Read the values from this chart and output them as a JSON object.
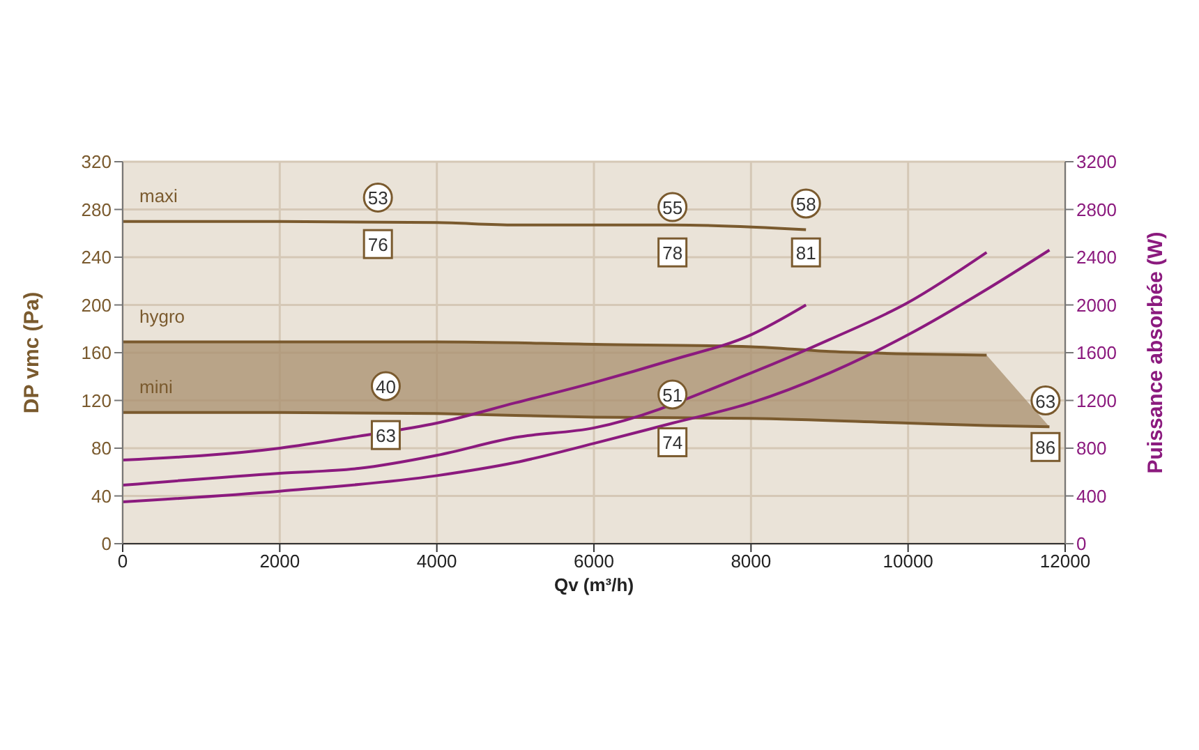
{
  "chart_data": {
    "type": "line",
    "xlabel": "Qv (m³/h)",
    "ylabel": "DP vmc (Pa)",
    "y2label": "Puissance absorbée (W)",
    "xlim": [
      0,
      12000
    ],
    "xticks": [
      0,
      2000,
      4000,
      6000,
      8000,
      10000,
      12000
    ],
    "ylim": [
      0,
      320
    ],
    "yticks": [
      0,
      40,
      80,
      120,
      160,
      200,
      240,
      280,
      320
    ],
    "y2lim": [
      0,
      3200
    ],
    "y2ticks": [
      0,
      400,
      800,
      1200,
      1600,
      2000,
      2400,
      2800,
      3200
    ],
    "grid": true,
    "legend": false,
    "marker": "none",
    "line_style": "solid",
    "series": [
      {
        "name": "maxi",
        "color": "#7a5a2e",
        "x": [
          0,
          2000,
          4000,
          5000,
          7000,
          8700
        ],
        "values": [
          270,
          270,
          269,
          267,
          267,
          263
        ]
      },
      {
        "name": "hygro",
        "color": "#7a5a2e",
        "x": [
          0,
          2000,
          4000,
          6000,
          8000,
          9000,
          10000,
          11000,
          11800
        ],
        "values": [
          169,
          169,
          169,
          167,
          165,
          161,
          159,
          158,
          null
        ],
        "lower": [
          110,
          110,
          109,
          106,
          105,
          103,
          101,
          99,
          98
        ],
        "upper": [
          169,
          169,
          169,
          167,
          165,
          161,
          159,
          158,
          98
        ]
      },
      {
        "name": "mini",
        "color": "#7a5a2e",
        "x": [
          0,
          2000,
          4000,
          6000,
          8000,
          10000,
          11000,
          11800
        ],
        "values": [
          110,
          110,
          109,
          106,
          105,
          101,
          99,
          98
        ]
      },
      {
        "color": "#8b1a7e",
        "axis": "y2",
        "x": [
          0,
          2000,
          3000,
          4000,
          5000,
          6000,
          7000,
          8000,
          8700
        ],
        "values": [
          700,
          800,
          900,
          1010,
          1180,
          1350,
          1540,
          1750,
          2000
        ]
      },
      {
        "color": "#8b1a7e",
        "axis": "y2",
        "x": [
          0,
          2000,
          3000,
          4000,
          5000,
          6000,
          8000,
          9000,
          10000,
          11000
        ],
        "values": [
          490,
          590,
          630,
          740,
          890,
          970,
          1430,
          1710,
          2020,
          2440
        ]
      },
      {
        "color": "#8b1a7e",
        "axis": "y2",
        "x": [
          0,
          2000,
          4000,
          5000,
          6000,
          7000,
          8000,
          9000,
          10000,
          11000,
          11800
        ],
        "values": [
          350,
          440,
          570,
          680,
          840,
          1010,
          1180,
          1430,
          1750,
          2130,
          2460
        ]
      }
    ],
    "annotations": [
      {
        "text": "53",
        "x": 3250,
        "y": 290
      },
      {
        "text": "76",
        "x": 3250,
        "y": 251
      },
      {
        "text": "55",
        "x": 7000,
        "y": 282
      },
      {
        "text": "78",
        "x": 7000,
        "y": 244
      },
      {
        "text": "58",
        "x": 8700,
        "y": 285
      },
      {
        "text": "81",
        "x": 8700,
        "y": 244
      },
      {
        "text": "40",
        "x": 3350,
        "y": 132
      },
      {
        "text": "63",
        "x": 3350,
        "y": 91
      },
      {
        "text": "51",
        "x": 7000,
        "y": 125
      },
      {
        "text": "74",
        "x": 7000,
        "y": 85
      },
      {
        "text": "63",
        "x": 11750,
        "y": 120
      },
      {
        "text": "86",
        "x": 11750,
        "y": 81
      }
    ]
  }
}
